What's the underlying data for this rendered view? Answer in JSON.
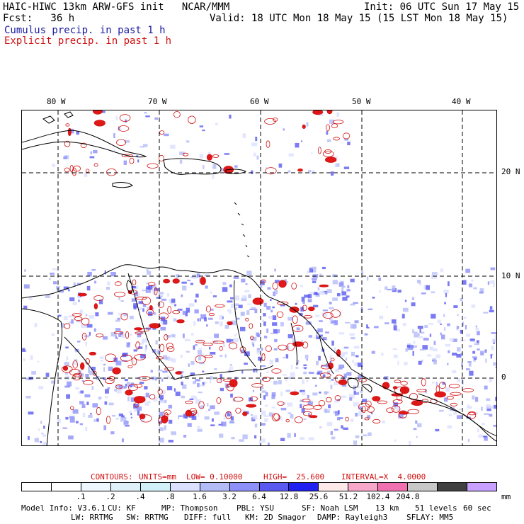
{
  "header": {
    "model_line": "HAIC-HIWC 13km ARW-GFS init   NCAR/MMM",
    "fcst_line": "Fcst:   36 h",
    "init_line": "Init: 06 UTC Sun 17 May 15",
    "valid_line": "Valid: 18 UTC Mon 18 May 15 (15 LST Mon 18 May 15)",
    "cumulus_label": "Cumulus precip. in past 1 h",
    "explicit_label": "Explicit precip. in past 1 h"
  },
  "colors": {
    "cumulus": "#1a1aa0",
    "explicit": "#d01010",
    "contour_text": "#d01010"
  },
  "map": {
    "lon_labels": [
      "80 W",
      "70 W",
      "60 W",
      "50 W",
      "40 W"
    ],
    "lat_labels": [
      "20 N",
      "10 N",
      "0"
    ]
  },
  "contours_line": {
    "label": "CONTOURS:",
    "units": "UNITS=mm",
    "low": "LOW= 0.10000",
    "high": "HIGH=  25.600",
    "interval": "INTERVAL=X  4.0000"
  },
  "colorbar": {
    "colors": [
      "#ffffff",
      "#ffffff",
      "#f0f8ff",
      "#e0f0fa",
      "#d2f0f8",
      "#dce0ff",
      "#b4bcf8",
      "#8c90f8",
      "#5a5af0",
      "#2020f0",
      "#fde8ea",
      "#f8a8c8",
      "#f070b0",
      "#c8c8c8",
      "#404040",
      "#c8a0ff"
    ],
    "labels": [
      ".1",
      ".2",
      ".4",
      ".8",
      "1.6",
      "3.2",
      "6.4",
      "12.8",
      "25.6",
      "51.2",
      "102.4",
      "204.8"
    ],
    "units": "mm"
  },
  "footer": {
    "line1": [
      "Model Info: V3.6.1",
      "CU: KF",
      "MP: Thompson",
      "PBL: YSU",
      "SF: Noah LSM",
      "13 km",
      "51 levels",
      "60 sec"
    ],
    "line2": [
      "LW: RRTMG",
      "SW: RRTMG",
      "DIFF: full",
      "KM: 2D Smagor",
      "DAMP: Rayleigh3",
      "SFLAY: MM5"
    ]
  }
}
